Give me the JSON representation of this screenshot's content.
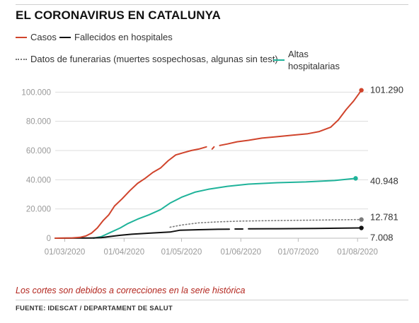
{
  "header": {
    "title": "EL CORONAVIRUS EN CATALUNYA"
  },
  "legend": {
    "casos": "Casos",
    "fallecidos": "Fallecidos en hospitales",
    "funerarias": "Datos de funerarias (muertes sospechosas, algunas sin test)",
    "altas_line1": "Altas",
    "altas_line2": "hospitalarias"
  },
  "footnote": "Los cortes son debidos a correcciones en la serie histórica",
  "source": "FUENTE: IDESCAT / DEPARTAMENT DE SALUT",
  "colors": {
    "casos": "#d0442c",
    "fallecidos": "#111111",
    "funerarias": "#7a7a7a",
    "altas": "#1fb39a",
    "grid": "#dddddd",
    "axis_text": "#999999",
    "end_label": "#333333"
  },
  "chart_data": {
    "type": "line",
    "x_ticks": [
      "01/03/2020",
      "01/04/2020",
      "01/05/2020",
      "01/06/2020",
      "01/07/2020",
      "01/08/2020"
    ],
    "y_ticks": [
      "0",
      "20.000",
      "40.000",
      "60.000",
      "80.000",
      "100.000"
    ],
    "ylim": [
      0,
      105000
    ],
    "xlim": [
      "2020-02-25",
      "2020-08-05"
    ],
    "grid": true,
    "end_labels": {
      "casos": "101.290",
      "altas": "40.948",
      "funerarias": "12.781",
      "fallecidos": "7.008"
    },
    "series": [
      {
        "name": "Casos",
        "key": "casos",
        "segments": [
          [
            [
              "2020-02-25",
              0
            ],
            [
              "2020-03-05",
              200
            ],
            [
              "2020-03-09",
              600
            ],
            [
              "2020-03-12",
              1500
            ],
            [
              "2020-03-15",
              3500
            ],
            [
              "2020-03-18",
              7000
            ],
            [
              "2020-03-21",
              12000
            ],
            [
              "2020-03-24",
              16000
            ],
            [
              "2020-03-27",
              22000
            ],
            [
              "2020-03-31",
              27000
            ],
            [
              "2020-04-04",
              32500
            ],
            [
              "2020-04-08",
              37500
            ],
            [
              "2020-04-12",
              41000
            ],
            [
              "2020-04-16",
              45000
            ],
            [
              "2020-04-20",
              48000
            ],
            [
              "2020-04-24",
              53000
            ],
            [
              "2020-04-28",
              57000
            ],
            [
              "2020-05-02",
              58500
            ],
            [
              "2020-05-06",
              60000
            ],
            [
              "2020-05-10",
              61000
            ],
            [
              "2020-05-14",
              62500
            ]
          ],
          [
            [
              "2020-05-17",
              61000
            ],
            [
              "2020-05-18",
              62500
            ]
          ],
          [
            [
              "2020-05-21",
              63500
            ],
            [
              "2020-05-25",
              64500
            ],
            [
              "2020-05-30",
              66000
            ],
            [
              "2020-06-05",
              67000
            ],
            [
              "2020-06-12",
              68500
            ],
            [
              "2020-06-20",
              69500
            ],
            [
              "2020-06-28",
              70500
            ],
            [
              "2020-07-06",
              71500
            ],
            [
              "2020-07-12",
              73000
            ],
            [
              "2020-07-18",
              76000
            ],
            [
              "2020-07-22",
              81000
            ],
            [
              "2020-07-26",
              88000
            ],
            [
              "2020-07-30",
              94000
            ],
            [
              "2020-08-03",
              101290
            ]
          ]
        ]
      },
      {
        "name": "Fallecidos en hospitales",
        "key": "fallecidos",
        "segments": [
          [
            [
              "2020-02-25",
              0
            ],
            [
              "2020-03-15",
              100
            ],
            [
              "2020-03-20",
              400
            ],
            [
              "2020-03-25",
              1200
            ],
            [
              "2020-03-30",
              2000
            ],
            [
              "2020-04-05",
              2700
            ],
            [
              "2020-04-15",
              3500
            ],
            [
              "2020-04-25",
              4200
            ],
            [
              "2020-04-30",
              5400
            ],
            [
              "2020-05-10",
              5800
            ],
            [
              "2020-05-20",
              6100
            ],
            [
              "2020-05-26",
              6200
            ]
          ],
          [
            [
              "2020-05-29",
              6300
            ],
            [
              "2020-06-02",
              6300
            ]
          ],
          [
            [
              "2020-06-05",
              6400
            ],
            [
              "2020-06-20",
              6500
            ],
            [
              "2020-07-10",
              6700
            ],
            [
              "2020-07-25",
              6900
            ],
            [
              "2020-08-03",
              7008
            ]
          ]
        ]
      },
      {
        "name": "Datos de funerarias (muertes sospechosas, algunas sin test)",
        "key": "funerarias",
        "segments": [
          [
            [
              "2020-04-25",
              7500
            ],
            [
              "2020-05-01",
              9000
            ],
            [
              "2020-05-10",
              10500
            ],
            [
              "2020-05-20",
              11200
            ],
            [
              "2020-06-01",
              11700
            ],
            [
              "2020-06-20",
              12100
            ],
            [
              "2020-07-10",
              12400
            ],
            [
              "2020-08-03",
              12781
            ]
          ]
        ]
      },
      {
        "name": "Altas hospitalarias",
        "key": "altas",
        "segments": [
          [
            [
              "2020-03-16",
              0
            ],
            [
              "2020-03-20",
              1000
            ],
            [
              "2020-03-25",
              4000
            ],
            [
              "2020-03-30",
              7000
            ],
            [
              "2020-04-03",
              10000
            ],
            [
              "2020-04-08",
              13000
            ],
            [
              "2020-04-14",
              16000
            ],
            [
              "2020-04-20",
              19500
            ],
            [
              "2020-04-25",
              24000
            ],
            [
              "2020-05-01",
              28000
            ],
            [
              "2020-05-08",
              31500
            ],
            [
              "2020-05-15",
              33500
            ],
            [
              "2020-05-25",
              35500
            ],
            [
              "2020-06-05",
              37000
            ],
            [
              "2020-06-20",
              38000
            ],
            [
              "2020-07-05",
              38500
            ],
            [
              "2020-07-20",
              39500
            ],
            [
              "2020-07-31",
              40948
            ]
          ]
        ]
      }
    ]
  }
}
